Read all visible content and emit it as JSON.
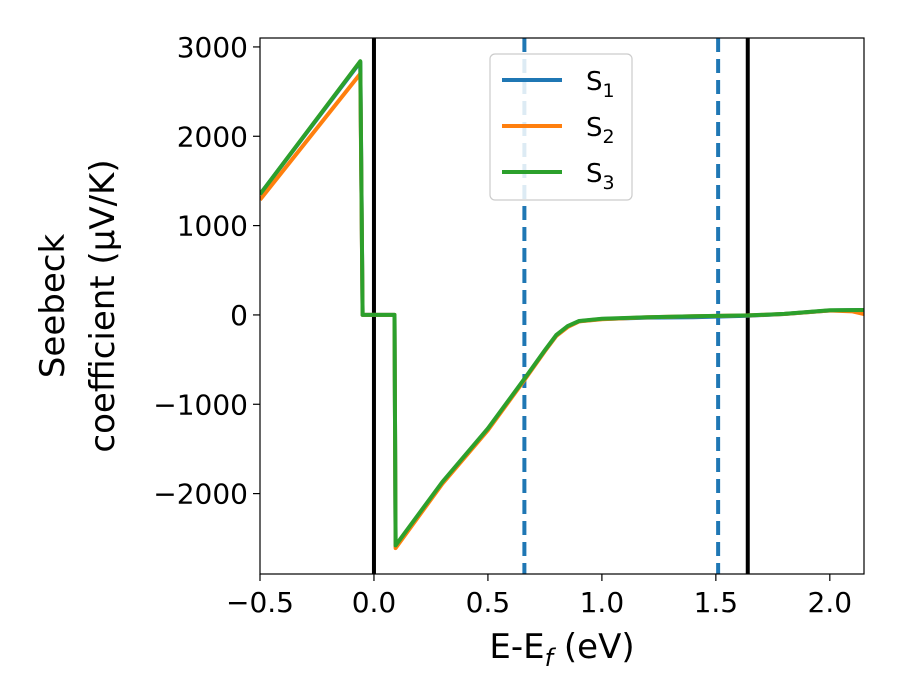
{
  "chart_data": {
    "type": "line",
    "xlabel": "E-E_f (eV)",
    "xlabel_parts": {
      "main": "E-E",
      "sub": "f",
      "rest": " (eV)"
    },
    "ylabel_line1": "Seebeck",
    "ylabel_line2": "coefficient  (μV/K)",
    "xlim": [
      -0.5,
      2.15
    ],
    "ylim": [
      -2900,
      3100
    ],
    "xticks": [
      -0.5,
      0.0,
      0.5,
      1.0,
      1.5,
      2.0
    ],
    "xtick_labels": [
      "−0.5",
      "0.0",
      "0.5",
      "1.0",
      "1.5",
      "2.0"
    ],
    "yticks": [
      -2000,
      -1000,
      0,
      1000,
      2000,
      3000
    ],
    "ytick_labels": [
      "−2000",
      "−1000",
      "0",
      "1000",
      "2000",
      "3000"
    ],
    "grid": false,
    "legend_position": "top-center",
    "vlines": [
      {
        "x": 0.0,
        "style": "solid",
        "color": "#000000"
      },
      {
        "x": 1.64,
        "style": "solid",
        "color": "#000000"
      },
      {
        "x": 0.66,
        "style": "dashed",
        "color": "#1f77b4"
      },
      {
        "x": 1.51,
        "style": "dashed",
        "color": "#1f77b4"
      }
    ],
    "series": [
      {
        "name": "S_1",
        "label_main": "S",
        "label_sub": "1",
        "color": "#1f77b4",
        "x": [
          -0.5,
          -0.06,
          -0.05,
          0.09,
          0.095,
          0.3,
          0.5,
          0.66,
          0.75,
          0.8,
          0.85,
          0.9,
          1.0,
          1.2,
          1.4,
          1.64,
          1.8,
          2.0,
          2.15
        ],
        "y": [
          1350,
          2830,
          0,
          0,
          -2590,
          -1880,
          -1280,
          -720,
          -400,
          -230,
          -130,
          -70,
          -45,
          -30,
          -25,
          -10,
          10,
          50,
          55
        ]
      },
      {
        "name": "S_2",
        "label_main": "S",
        "label_sub": "2",
        "color": "#ff7f0e",
        "x": [
          -0.5,
          -0.06,
          -0.05,
          0.09,
          0.095,
          0.3,
          0.5,
          0.66,
          0.75,
          0.8,
          0.85,
          0.9,
          1.0,
          1.2,
          1.4,
          1.64,
          1.8,
          2.0,
          2.1,
          2.15
        ],
        "y": [
          1290,
          2700,
          0,
          0,
          -2610,
          -1890,
          -1290,
          -730,
          -405,
          -235,
          -135,
          -72,
          -48,
          -25,
          -15,
          -5,
          10,
          50,
          40,
          10
        ]
      },
      {
        "name": "S_3",
        "label_main": "S",
        "label_sub": "3",
        "color": "#2ca02c",
        "x": [
          -0.5,
          -0.06,
          -0.05,
          0.09,
          0.095,
          0.3,
          0.5,
          0.66,
          0.75,
          0.8,
          0.85,
          0.9,
          1.0,
          1.2,
          1.4,
          1.64,
          1.8,
          2.0,
          2.15
        ],
        "y": [
          1350,
          2840,
          0,
          0,
          -2580,
          -1870,
          -1270,
          -715,
          -395,
          -225,
          -125,
          -68,
          -42,
          -25,
          -15,
          -5,
          12,
          52,
          55
        ]
      }
    ]
  }
}
